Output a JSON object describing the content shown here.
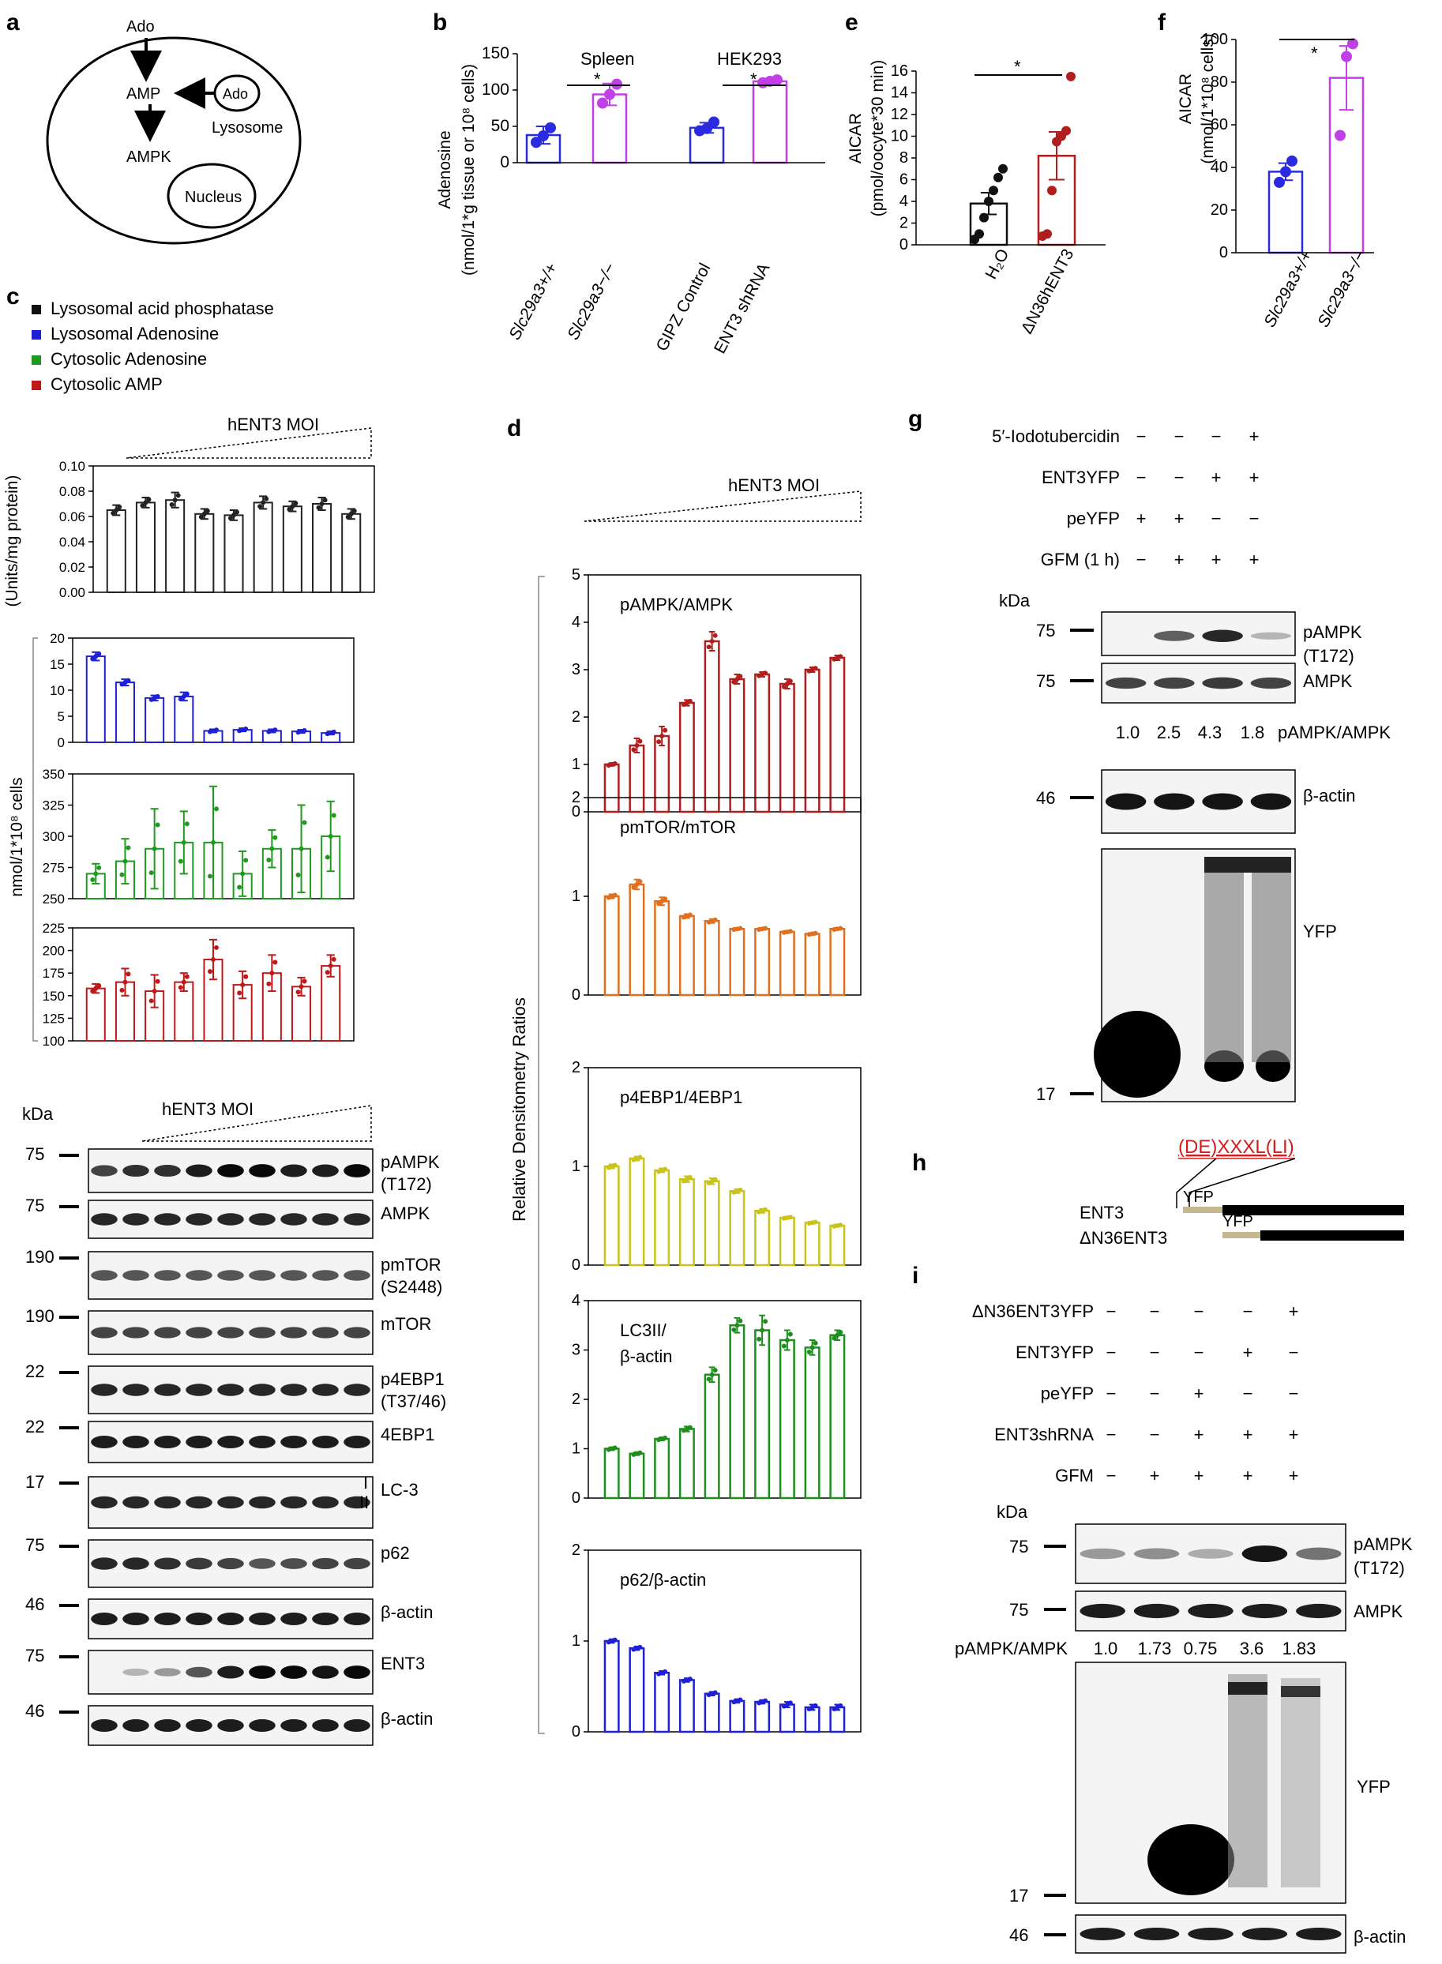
{
  "panels": {
    "a": {
      "letter": "a",
      "labels": {
        "ado_top": "Ado",
        "amp": "AMP",
        "ado_lys": "Ado",
        "lysosome": "Lysosome",
        "ampk": "AMPK",
        "nucleus": "Nucleus"
      }
    },
    "b": {
      "letter": "b",
      "group_titles": [
        "Spleen",
        "HEK293"
      ],
      "ylabel": "Adenosine",
      "ylabel2": "(nmol/1*g tissue or 10⁸ cells)",
      "sig": [
        "*",
        "*"
      ],
      "xlabels": [
        "Slc29a3+/+",
        "Slc29a3−/−",
        "GIPZ Control",
        "ENT3 shRNA"
      ]
    },
    "c": {
      "letter": "c",
      "legend": [
        "Lysosomal acid phosphatase",
        "Lysosomal Adenosine",
        "Cytosolic Adenosine",
        "Cytosolic AMP"
      ],
      "moi_label": "hENT3 MOI",
      "ylabel_top": "(Units/mg protein)",
      "ylabel_mid": "nmol/1*10⁸ cells"
    },
    "c_blot": {
      "kda": "kDa",
      "moi_label": "hENT3 MOI",
      "rows": [
        {
          "marker": "75",
          "label": "pAMPK",
          "label2": "(T172)"
        },
        {
          "marker": "75",
          "label": "AMPK",
          "label2": ""
        },
        {
          "marker": "190",
          "label": "pmTOR",
          "label2": "(S2448)"
        },
        {
          "marker": "190",
          "label": "mTOR",
          "label2": ""
        },
        {
          "marker": "22",
          "label": "p4EBP1",
          "label2": "(T37/46)"
        },
        {
          "marker": "22",
          "label": "4EBP1",
          "label2": ""
        },
        {
          "marker": "17",
          "label": "LC-3",
          "label2": ""
        },
        {
          "marker": "75",
          "label": "p62",
          "label2": ""
        },
        {
          "marker": "46",
          "label": "β-actin",
          "label2": ""
        },
        {
          "marker": "75",
          "label": "ENT3",
          "label2": ""
        },
        {
          "marker": "46",
          "label": "β-actin",
          "label2": ""
        }
      ],
      "lc3_marks": [
        "I",
        "II"
      ]
    },
    "d": {
      "letter": "d",
      "moi_label": "hENT3 MOI",
      "ylabel": "Relative Densitometry Ratios"
    },
    "e": {
      "letter": "e",
      "ylabel": "AICAR",
      "ylabel2": "(pmol/oocyte*30 min)",
      "sig": "*",
      "xlabels": [
        "H₂O",
        "ΔN36hENT3"
      ]
    },
    "f": {
      "letter": "f",
      "ylabel": "AICAR",
      "ylabel2": "(nmol/1*10⁸ cells)",
      "sig": "*",
      "xlabels": [
        "Slc29a3+/+",
        "Slc29a3−/−"
      ]
    },
    "g": {
      "letter": "g",
      "conditions": [
        {
          "label": "5′-Iodotubercidin",
          "signs": [
            "−",
            "−",
            "−",
            "+"
          ]
        },
        {
          "label": "ENT3YFP",
          "signs": [
            "−",
            "−",
            "+",
            "+"
          ]
        },
        {
          "label": "peYFP",
          "signs": [
            "+",
            "+",
            "−",
            "−"
          ]
        },
        {
          "label": "GFM (1 h)",
          "signs": [
            "−",
            "+",
            "+",
            "+"
          ]
        }
      ],
      "kda": "kDa",
      "markers": [
        "75",
        "75",
        "46",
        "17"
      ],
      "blot_labels": [
        "pAMPK",
        "(T172)",
        "AMPK",
        "β-actin",
        "YFP"
      ],
      "ratio_label": "pAMPK/AMPK",
      "ratios": [
        "1.0",
        "2.5",
        "4.3",
        "1.8"
      ]
    },
    "h": {
      "letter": "h",
      "motif": "(DE)XXXL(LI)",
      "yfp": "YFP",
      "rows": [
        "ENT3",
        "ΔN36ENT3"
      ]
    },
    "i": {
      "letter": "i",
      "conditions": [
        {
          "label": "ΔN36ENT3YFP",
          "signs": [
            "−",
            "−",
            "−",
            "−",
            "+"
          ]
        },
        {
          "label": "ENT3YFP",
          "signs": [
            "−",
            "−",
            "−",
            "+",
            "−"
          ]
        },
        {
          "label": "peYFP",
          "signs": [
            "−",
            "−",
            "+",
            "−",
            "−"
          ]
        },
        {
          "label": "ENT3shRNA",
          "signs": [
            "−",
            "−",
            "+",
            "+",
            "+"
          ]
        },
        {
          "label": "GFM",
          "signs": [
            "−",
            "+",
            "+",
            "+",
            "+"
          ]
        }
      ],
      "kda": "kDa",
      "markers": [
        "75",
        "75",
        "17",
        "46"
      ],
      "blot_labels": [
        "pAMPK",
        "(T172)",
        "AMPK",
        "YFP",
        "β-actin"
      ],
      "ratio_label": "pAMPK/AMPK",
      "ratios": [
        "1.0",
        "1.73",
        "0.75",
        "3.6",
        "1.83"
      ]
    }
  },
  "chart_data": [
    {
      "id": "b",
      "type": "bar",
      "title": "",
      "xlabel": "",
      "ylabel": "Adenosine (nmol/1*g tissue or 10⁸ cells)",
      "ylim": [
        0,
        150
      ],
      "yticks": [
        0,
        50,
        100,
        150
      ],
      "categories": [
        "Slc29a3+/+",
        "Slc29a3−/−",
        "GIPZ Control",
        "ENT3 shRNA"
      ],
      "values": [
        38,
        94,
        48,
        112
      ],
      "errors": [
        12,
        15,
        7,
        3
      ],
      "colors": [
        "#2a2ae0",
        "#c03fe6",
        "#2a2ae0",
        "#c03fe6"
      ],
      "points": [
        [
          28,
          37,
          48
        ],
        [
          82,
          94,
          108
        ],
        [
          44,
          47,
          56
        ],
        [
          110,
          112,
          114
        ]
      ]
    },
    {
      "id": "c1",
      "type": "bar",
      "series_name": "Lysosomal acid phosphatase",
      "ylabel": "(Units/mg protein)",
      "ylim": [
        0,
        0.1
      ],
      "yticks": [
        "0.00",
        "0.02",
        "0.04",
        "0.06",
        "0.08",
        "0.10"
      ],
      "values": [
        0.065,
        0.071,
        0.073,
        0.062,
        0.061,
        0.071,
        0.068,
        0.07,
        0.062
      ],
      "errors": [
        0.004,
        0.004,
        0.006,
        0.004,
        0.004,
        0.005,
        0.004,
        0.005,
        0.004
      ],
      "color": "#222222"
    },
    {
      "id": "c2",
      "type": "bar",
      "series_name": "Lysosomal Adenosine",
      "ylim": [
        0,
        20
      ],
      "yticks": [
        "0",
        "5",
        "10",
        "15",
        "20"
      ],
      "values": [
        16.5,
        11.5,
        8.5,
        8.8,
        2.2,
        2.4,
        2.2,
        2.1,
        1.8
      ],
      "errors": [
        0.8,
        0.6,
        0.5,
        0.8,
        0.3,
        0.3,
        0.3,
        0.3,
        0.3
      ],
      "color": "#1f1fd6"
    },
    {
      "id": "c3",
      "type": "bar",
      "series_name": "Cytosolic Adenosine",
      "ylim": [
        250,
        350
      ],
      "yticks": [
        "250",
        "275",
        "300",
        "325",
        "350"
      ],
      "values": [
        270,
        280,
        290,
        295,
        295,
        270,
        290,
        290,
        300
      ],
      "errors": [
        8,
        18,
        32,
        25,
        45,
        18,
        15,
        35,
        28
      ],
      "color": "#1f9a1f"
    },
    {
      "id": "c4",
      "type": "bar",
      "series_name": "Cytosolic AMP",
      "ylim": [
        100,
        225
      ],
      "yticks": [
        "100",
        "125",
        "150",
        "175",
        "200",
        "225"
      ],
      "values": [
        158,
        165,
        155,
        165,
        190,
        162,
        175,
        160,
        183
      ],
      "errors": [
        5,
        15,
        18,
        10,
        22,
        15,
        20,
        10,
        12
      ],
      "color": "#c01818"
    },
    {
      "id": "d1",
      "type": "bar",
      "title": "pAMPK/AMPK",
      "ylim": [
        0,
        5
      ],
      "yticks": [
        "0",
        "1",
        "2",
        "3",
        "4",
        "5"
      ],
      "values": [
        1.0,
        1.4,
        1.6,
        2.3,
        3.6,
        2.8,
        2.9,
        2.7,
        3.0,
        3.25
      ],
      "errors": [
        0.03,
        0.15,
        0.2,
        0.06,
        0.2,
        0.1,
        0.05,
        0.1,
        0.05,
        0.05
      ],
      "color": "#b01e1e"
    },
    {
      "id": "d2",
      "type": "bar",
      "title": "pmTOR/mTOR",
      "ylim": [
        0,
        2
      ],
      "yticks": [
        "0",
        "1",
        "2"
      ],
      "values": [
        1.0,
        1.12,
        0.95,
        0.8,
        0.75,
        0.67,
        0.67,
        0.64,
        0.62,
        0.67
      ],
      "errors": [
        0.02,
        0.05,
        0.04,
        0.02,
        0.02,
        0.01,
        0.01,
        0.01,
        0.01,
        0.01
      ],
      "color": "#e0701f"
    },
    {
      "id": "d3",
      "type": "bar",
      "title": "p4EBP1/4EBP1",
      "ylim": [
        0,
        2
      ],
      "yticks": [
        "0",
        "1",
        "2"
      ],
      "values": [
        1.0,
        1.08,
        0.96,
        0.87,
        0.85,
        0.75,
        0.55,
        0.48,
        0.43,
        0.4
      ],
      "errors": [
        0.02,
        0.02,
        0.02,
        0.03,
        0.03,
        0.02,
        0.02,
        0.01,
        0.01,
        0.01
      ],
      "color": "#c8c41c"
    },
    {
      "id": "d4",
      "type": "bar",
      "title": "LC3II/",
      "title2": "β-actin",
      "ylim": [
        0,
        4
      ],
      "yticks": [
        "0",
        "1",
        "2",
        "3",
        "4"
      ],
      "values": [
        1.0,
        0.9,
        1.2,
        1.4,
        2.5,
        3.5,
        3.4,
        3.2,
        3.05,
        3.3
      ],
      "errors": [
        0.03,
        0.03,
        0.03,
        0.05,
        0.15,
        0.15,
        0.3,
        0.2,
        0.15,
        0.1
      ],
      "color": "#1c8f1c"
    },
    {
      "id": "d5",
      "type": "bar",
      "title": "p62/β-actin",
      "ylim": [
        0,
        2
      ],
      "yticks": [
        "0",
        "1",
        "2"
      ],
      "values": [
        1.0,
        0.92,
        0.65,
        0.57,
        0.42,
        0.34,
        0.33,
        0.3,
        0.27,
        0.27
      ],
      "errors": [
        0.02,
        0.02,
        0.02,
        0.02,
        0.02,
        0.02,
        0.02,
        0.03,
        0.03,
        0.03
      ],
      "color": "#1f1fd6"
    },
    {
      "id": "e",
      "type": "bar",
      "ylabel": "AICAR (pmol/oocyte*30 min)",
      "ylim": [
        0,
        16
      ],
      "yticks": [
        0,
        2,
        4,
        6,
        8,
        10,
        12,
        14,
        16
      ],
      "categories": [
        "H₂O",
        "ΔN36hENT3"
      ],
      "values": [
        3.8,
        8.2
      ],
      "errors": [
        1.0,
        2.2
      ],
      "colors": [
        "#111111",
        "#b01e1e"
      ],
      "points": [
        [
          0.5,
          1.0,
          2.5,
          4.0,
          5.0,
          6.2,
          7.0
        ],
        [
          0.8,
          1.0,
          5.0,
          9.5,
          10.0,
          10.5,
          15.5
        ]
      ]
    },
    {
      "id": "f",
      "type": "bar",
      "ylabel": "AICAR (nmol/1*10⁸ cells)",
      "ylim": [
        0,
        100
      ],
      "yticks": [
        0,
        20,
        40,
        60,
        80,
        100
      ],
      "categories": [
        "Slc29a3+/+",
        "Slc29a3−/−"
      ],
      "values": [
        38,
        82
      ],
      "errors": [
        4,
        15
      ],
      "colors": [
        "#2a2ae0",
        "#c03fe6"
      ],
      "points": [
        [
          33,
          38,
          43
        ],
        [
          55,
          92,
          98
        ]
      ]
    }
  ]
}
